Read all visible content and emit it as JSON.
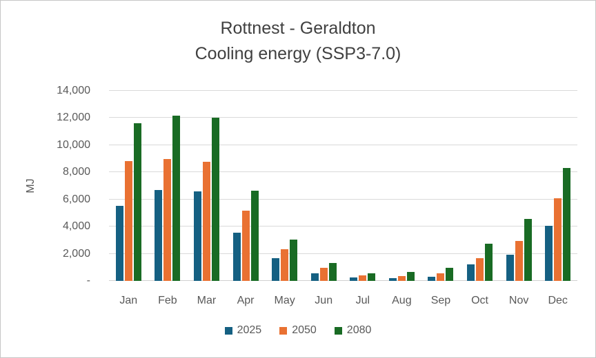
{
  "title": {
    "line1": "Rottnest - Geraldton",
    "line2": "Cooling energy (SSP3-7.0)"
  },
  "y_axis": {
    "label": "MJ"
  },
  "colors": {
    "series_2025": "#156082",
    "series_2050": "#E97132",
    "series_2080": "#196B24",
    "gridline": "#d9d9d9",
    "axis_text": "#595959",
    "title_text": "#404040"
  },
  "chart_data": {
    "type": "bar",
    "title": "Rottnest - Geraldton Cooling energy (SSP3-7.0)",
    "xlabel": "",
    "ylabel": "MJ",
    "ylim": [
      0,
      14000
    ],
    "ytick_step": 2000,
    "grid": true,
    "legend_position": "bottom",
    "categories": [
      "Jan",
      "Feb",
      "Mar",
      "Apr",
      "May",
      "Jun",
      "Jul",
      "Aug",
      "Sep",
      "Oct",
      "Nov",
      "Dec"
    ],
    "yticks": [
      {
        "value": 14000,
        "label": "14,000"
      },
      {
        "value": 12000,
        "label": "12,000"
      },
      {
        "value": 10000,
        "label": "10,000"
      },
      {
        "value": 8000,
        "label": "8,000"
      },
      {
        "value": 6000,
        "label": "6,000"
      },
      {
        "value": 4000,
        "label": "4,000"
      },
      {
        "value": 2000,
        "label": "2,000"
      },
      {
        "value": 0,
        "label": "-"
      }
    ],
    "series": [
      {
        "name": "2025",
        "color": "#156082",
        "values": [
          5550,
          6700,
          6600,
          3550,
          1700,
          550,
          250,
          200,
          300,
          1200,
          1950,
          4050
        ]
      },
      {
        "name": "2050",
        "color": "#E97132",
        "values": [
          8850,
          9000,
          8800,
          5150,
          2350,
          950,
          400,
          350,
          550,
          1700,
          2950,
          6100
        ]
      },
      {
        "name": "2080",
        "color": "#196B24",
        "values": [
          11600,
          12150,
          12000,
          6650,
          3050,
          1300,
          550,
          650,
          950,
          2750,
          4550,
          8300
        ]
      }
    ]
  }
}
